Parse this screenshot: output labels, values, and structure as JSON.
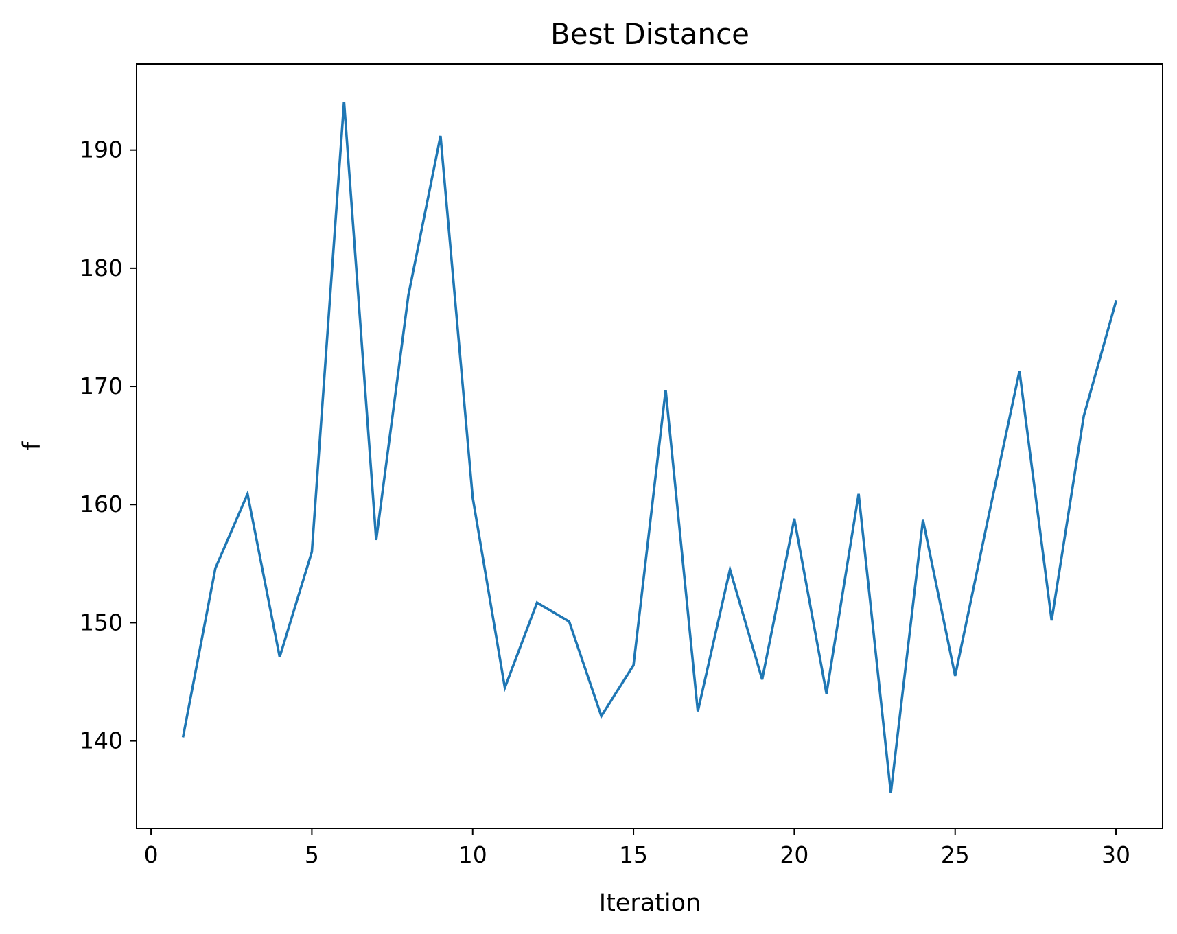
{
  "chart_data": {
    "type": "line",
    "title": "Best Distance",
    "xlabel": "Iteration",
    "ylabel": "f",
    "x": [
      1,
      2,
      3,
      4,
      5,
      6,
      7,
      8,
      9,
      10,
      11,
      12,
      13,
      14,
      15,
      16,
      17,
      18,
      19,
      20,
      21,
      22,
      23,
      24,
      25,
      26,
      27,
      28,
      29,
      30
    ],
    "series": [
      {
        "values": [
          140.4,
          154.6,
          160.9,
          147.1,
          156.0,
          194.1,
          157.0,
          177.7,
          191.2,
          160.6,
          144.5,
          151.7,
          150.1,
          142.1,
          146.4,
          169.7,
          142.5,
          154.5,
          145.2,
          158.8,
          144.0,
          160.9,
          135.6,
          158.7,
          145.5,
          158.5,
          171.3,
          150.2,
          167.5,
          177.2
        ],
        "color": "#1f77b4"
      }
    ],
    "xlim": [
      -0.45,
      31.45
    ],
    "ylim": [
      132.6,
      197.3
    ],
    "xticks": [
      "0",
      "5",
      "10",
      "15",
      "20",
      "25",
      "30"
    ],
    "yticks": [
      "140",
      "150",
      "160",
      "170",
      "180",
      "190"
    ],
    "grid": false
  }
}
